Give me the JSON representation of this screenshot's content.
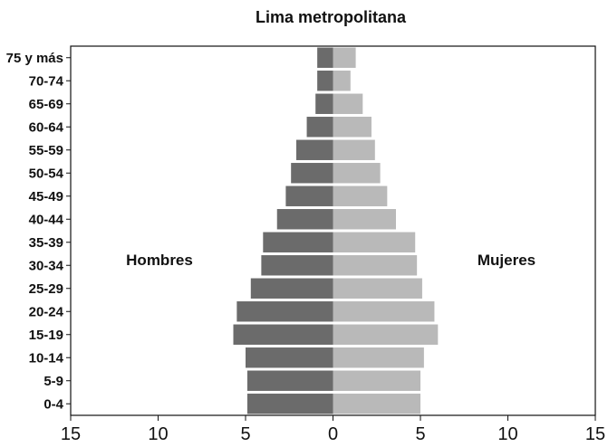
{
  "chart_data": {
    "type": "bar",
    "title": "Lima metropolitana",
    "categories": [
      "75 y más",
      "70-74",
      "65-69",
      "60-64",
      "55-59",
      "50-54",
      "45-49",
      "40-44",
      "35-39",
      "30-34",
      "25-29",
      "20-24",
      "15-19",
      "10-14",
      "5-9",
      "0-4"
    ],
    "series": [
      {
        "name": "Hombres",
        "values": [
          0.9,
          0.9,
          1.0,
          1.5,
          2.1,
          2.4,
          2.7,
          3.2,
          4.0,
          4.1,
          4.7,
          5.5,
          5.7,
          5.0,
          4.9,
          4.9
        ],
        "color": "#6b6b6b"
      },
      {
        "name": "Mujeres",
        "values": [
          1.3,
          1.0,
          1.7,
          2.2,
          2.4,
          2.7,
          3.1,
          3.6,
          4.7,
          4.8,
          5.1,
          5.8,
          6.0,
          5.2,
          5.0,
          5.0
        ],
        "color": "#b9b9b9"
      }
    ],
    "xtick_labels": [
      "15",
      "10",
      "5",
      "0",
      "5",
      "10",
      "15"
    ],
    "xlim": [
      -15,
      15
    ],
    "grid": false
  }
}
